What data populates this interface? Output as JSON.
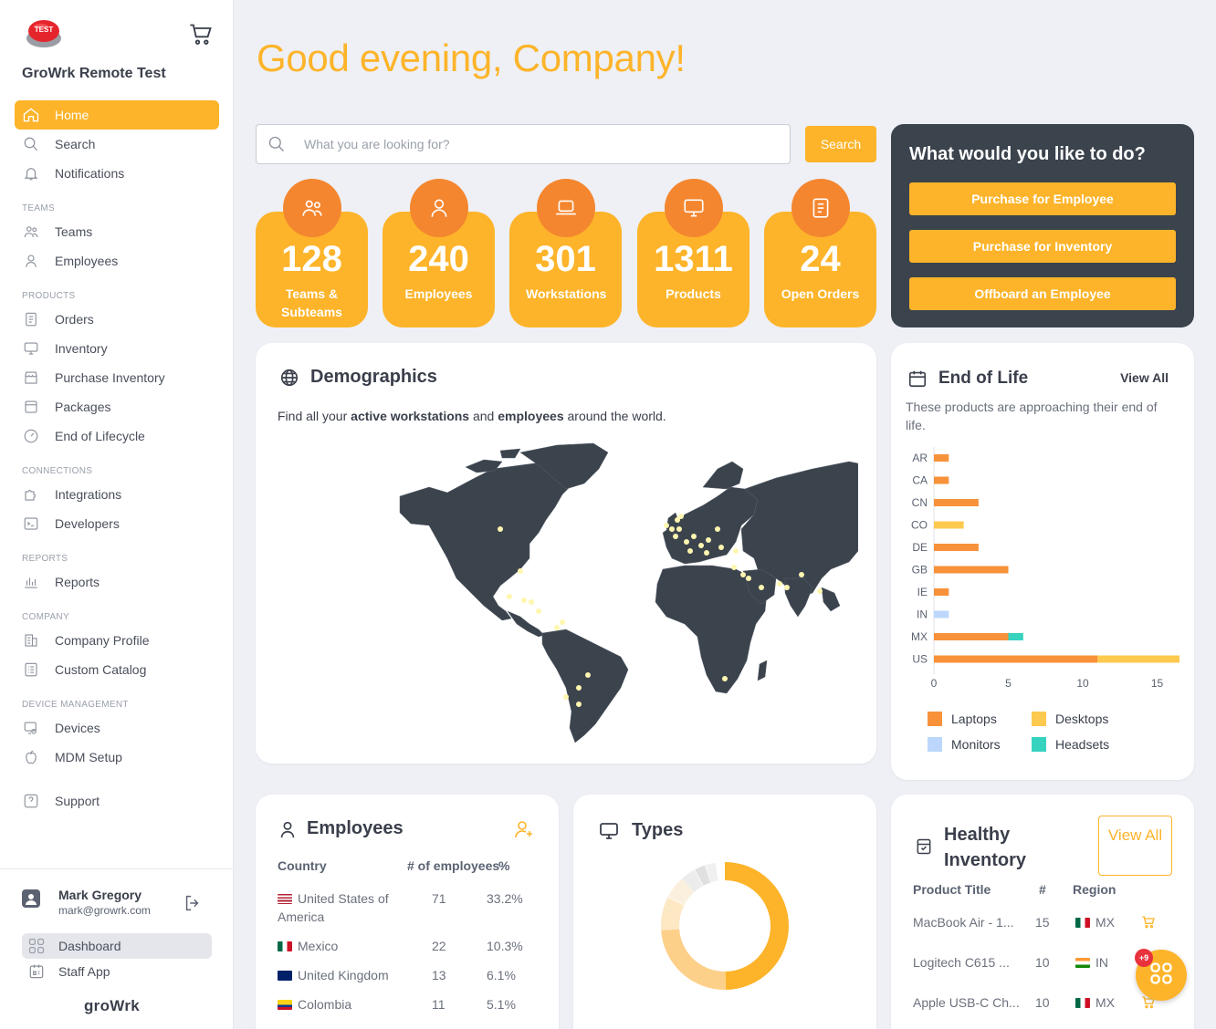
{
  "sidebar": {
    "badge_text": "TEST",
    "company_name": "GroWrk Remote Test",
    "items": {
      "home": "Home",
      "search": "Search",
      "notifications": "Notifications",
      "teams_section": "TEAMS",
      "teams": "Teams",
      "employees": "Employees",
      "products_section": "PRODUCTS",
      "orders": "Orders",
      "inventory": "Inventory",
      "purchase_inventory": "Purchase Inventory",
      "packages": "Packages",
      "end_of_lifecycle": "End of Lifecycle",
      "connections_section": "CONNECTIONS",
      "integrations": "Integrations",
      "developers": "Developers",
      "reports_section": "REPORTS",
      "reports": "Reports",
      "company_section": "COMPANY",
      "company_profile": "Company Profile",
      "custom_catalog": "Custom Catalog",
      "device_section": "DEVICE MANAGEMENT",
      "devices": "Devices",
      "mdm_setup": "MDM Setup",
      "support": "Support"
    },
    "user": {
      "name": "Mark Gregory",
      "email": "mark@growrk.com"
    },
    "apps": {
      "dashboard": "Dashboard",
      "staff_app": "Staff App"
    },
    "brand": "groWrk"
  },
  "header": {
    "greeting": "Good evening, Company!"
  },
  "search": {
    "placeholder": "What you are looking for?",
    "button": "Search"
  },
  "stats": [
    {
      "value": "128",
      "label": "Teams & Subteams",
      "icon": "teams-icon"
    },
    {
      "value": "240",
      "label": "Employees",
      "icon": "user-icon"
    },
    {
      "value": "301",
      "label": "Workstations",
      "icon": "laptop-icon"
    },
    {
      "value": "1311",
      "label": "Products",
      "icon": "monitor-icon"
    },
    {
      "value": "24",
      "label": "Open Orders",
      "icon": "clipboard-icon"
    }
  ],
  "actions": {
    "title": "What would you like to do?",
    "purchase_employee": "Purchase for Employee",
    "purchase_inventory": "Purchase for Inventory",
    "offboard": "Offboard an Employee"
  },
  "demographics": {
    "title": "Demographics",
    "desc_1": "Find all your ",
    "desc_bold_1": "active workstations",
    "desc_2": " and ",
    "desc_bold_2": "employees",
    "desc_3": " around the world."
  },
  "end_of_life": {
    "title": "End of Life",
    "view_all": "View All",
    "description": "These products are approaching their end of life."
  },
  "chart_data": {
    "type": "bar",
    "orientation": "horizontal",
    "stacked": true,
    "categories": [
      "AR",
      "CA",
      "CN",
      "CO",
      "DE",
      "GB",
      "IE",
      "IN",
      "MX",
      "US"
    ],
    "series": [
      {
        "name": "Laptops",
        "color": "#f7923a",
        "values": [
          1,
          1,
          3,
          0,
          3,
          5,
          1,
          0,
          5,
          11
        ]
      },
      {
        "name": "Desktops",
        "color": "#fdc94f",
        "values": [
          0,
          0,
          0,
          2,
          0,
          0,
          0,
          0,
          0,
          5.5
        ]
      },
      {
        "name": "Monitors",
        "color": "#bcd7fb",
        "values": [
          0,
          0,
          0,
          0,
          0,
          0,
          0,
          1,
          0,
          0
        ]
      },
      {
        "name": "Headsets",
        "color": "#36d3bf",
        "values": [
          0,
          0,
          0,
          0,
          0,
          0,
          0,
          0,
          1,
          0
        ]
      }
    ],
    "xlim": [
      0,
      16.5
    ],
    "xticks": [
      "0",
      "5",
      "10",
      "15"
    ],
    "legend_position": "bottom"
  },
  "employees_card": {
    "title": "Employees",
    "headers": {
      "country": "Country",
      "count": "# of employees",
      "pct": "%"
    },
    "rows": [
      {
        "country": "United States of America",
        "count": "71",
        "pct": "33.2%",
        "flag": "us"
      },
      {
        "country": "Mexico",
        "count": "22",
        "pct": "10.3%",
        "flag": "mx"
      },
      {
        "country": "United Kingdom",
        "count": "13",
        "pct": "6.1%",
        "flag": "gb"
      },
      {
        "country": "Colombia",
        "count": "11",
        "pct": "5.1%",
        "flag": "co"
      }
    ]
  },
  "types_card": {
    "title": "Types"
  },
  "healthy_inventory": {
    "title": "Healthy Inventory",
    "view_all": "View All",
    "headers": {
      "product": "Product Title",
      "count": "#",
      "region": "Region"
    },
    "rows": [
      {
        "product": "MacBook Air - 1...",
        "count": "15",
        "region": "MX",
        "flag": "mx"
      },
      {
        "product": "Logitech C615 ...",
        "count": "10",
        "region": "IN",
        "flag": "in"
      },
      {
        "product": "Apple USB-C Ch...",
        "count": "10",
        "region": "MX",
        "flag": "mx"
      }
    ]
  },
  "fab": {
    "badge": "+9"
  }
}
